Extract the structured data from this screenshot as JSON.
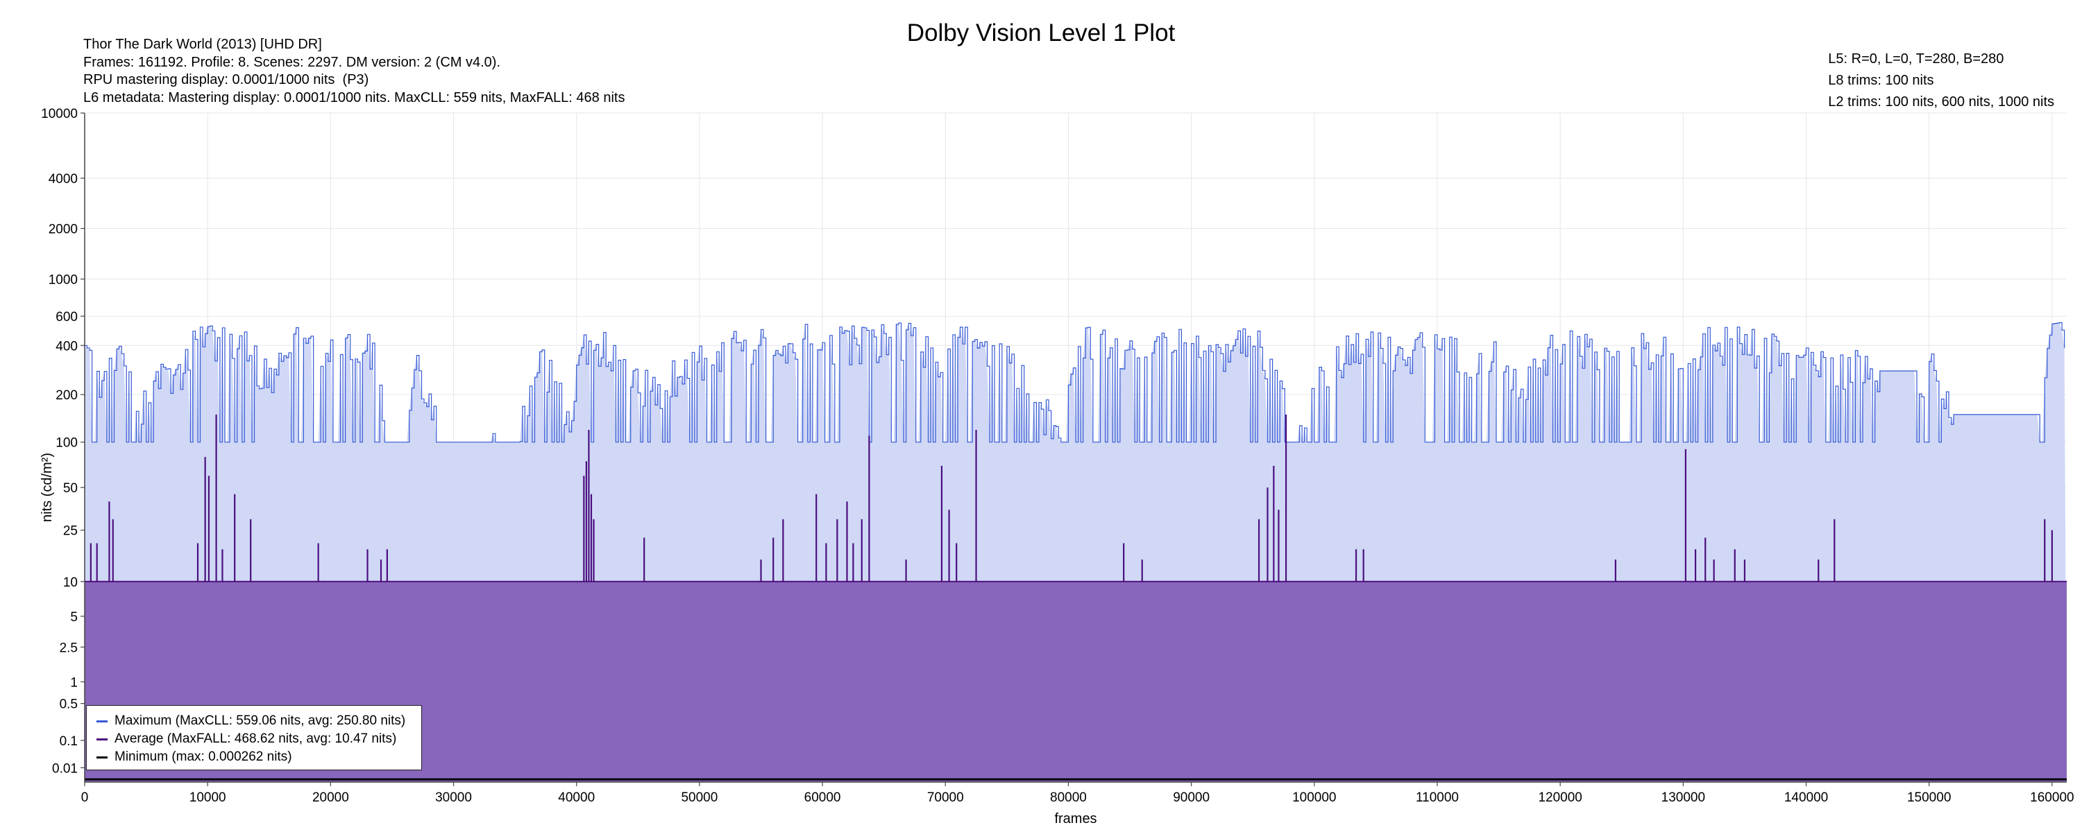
{
  "header": {
    "title": "Dolby Vision Level 1 Plot",
    "info_left": [
      "Thor The Dark World (2013) [UHD DR]",
      "Frames: 161192. Profile: 8. Scenes: 2297. DM version: 2 (CM v4.0).",
      "RPU mastering display: 0.0001/1000 nits  (P3)",
      "L6 metadata: Mastering display: 0.0001/1000 nits. MaxCLL: 559 nits, MaxFALL: 468 nits"
    ],
    "info_right": [
      "L5: R=0, L=0, T=280, B=280",
      "L8 trims: 100 nits",
      "L2 trims: 100 nits, 600 nits, 1000 nits"
    ]
  },
  "chart_data": {
    "type": "area",
    "title": "Dolby Vision Level 1 Plot",
    "xlabel": "frames",
    "ylabel": "nits (cd/m²)",
    "xlim": [
      0,
      161192
    ],
    "x_ticks": [
      0,
      10000,
      20000,
      30000,
      40000,
      50000,
      60000,
      70000,
      80000,
      90000,
      100000,
      110000,
      120000,
      130000,
      140000,
      150000,
      160000
    ],
    "x_tick_labels": [
      "0",
      "10000",
      "20000",
      "30000",
      "40000",
      "50000",
      "60000",
      "70000",
      "80000",
      "90000",
      "100000",
      "110000",
      "120000",
      "130000",
      "140000",
      "150000",
      "160000"
    ],
    "y_scale": "pq",
    "ylim": [
      0,
      10000
    ],
    "y_ticks": [
      0.01,
      0.1,
      0.5,
      1,
      2.5,
      5,
      10,
      25,
      50,
      100,
      200,
      400,
      600,
      1000,
      2000,
      4000,
      10000
    ],
    "y_tick_labels": [
      "0.01",
      "0.1",
      "0.5",
      "1",
      "2.5",
      "5",
      "10",
      "25",
      "50",
      "100",
      "200",
      "400",
      "600",
      "1000",
      "2000",
      "4000",
      "10000"
    ],
    "grid": true,
    "legend_position": "bottom-left",
    "series": [
      {
        "name": "Maximum (MaxCLL: 559.06 nits, avg: 250.80 nits)",
        "color": "#3559d4",
        "fill": "#d0d8f6",
        "floor": 100,
        "max": 559.06,
        "avg": 250.8,
        "points": [
          [
            0,
            400
          ],
          [
            1500,
            300
          ],
          [
            3000,
            420
          ],
          [
            4500,
            180
          ],
          [
            6000,
            350
          ],
          [
            7500,
            300
          ],
          [
            9000,
            550
          ],
          [
            11000,
            540
          ],
          [
            13000,
            520
          ],
          [
            15000,
            300
          ],
          [
            17000,
            550
          ],
          [
            20000,
            540
          ],
          [
            22000,
            545
          ],
          [
            23000,
            530
          ],
          [
            24500,
            100
          ],
          [
            26000,
            100
          ],
          [
            27000,
            400
          ],
          [
            28000,
            250
          ],
          [
            29000,
            100
          ],
          [
            32000,
            100
          ],
          [
            33000,
            150
          ],
          [
            35000,
            100
          ],
          [
            37000,
            400
          ],
          [
            38500,
            300
          ],
          [
            39500,
            100
          ],
          [
            40500,
            550
          ],
          [
            42000,
            540
          ],
          [
            44000,
            420
          ],
          [
            45500,
            300
          ],
          [
            47000,
            250
          ],
          [
            49000,
            450
          ],
          [
            51000,
            380
          ],
          [
            53000,
            500
          ],
          [
            55000,
            500
          ],
          [
            57000,
            540
          ],
          [
            60000,
            545
          ],
          [
            63000,
            550
          ],
          [
            66000,
            550
          ],
          [
            68000,
            545
          ],
          [
            69500,
            300
          ],
          [
            71000,
            540
          ],
          [
            73000,
            500
          ],
          [
            75000,
            450
          ],
          [
            76500,
            300
          ],
          [
            78000,
            200
          ],
          [
            79500,
            100
          ],
          [
            81000,
            540
          ],
          [
            84000,
            520
          ],
          [
            87000,
            540
          ],
          [
            90000,
            500
          ],
          [
            92500,
            480
          ],
          [
            95000,
            520
          ],
          [
            97500,
            350
          ],
          [
            99000,
            100
          ],
          [
            101000,
            400
          ],
          [
            103000,
            480
          ],
          [
            105000,
            500
          ],
          [
            107000,
            450
          ],
          [
            109000,
            540
          ],
          [
            111000,
            500
          ],
          [
            113000,
            380
          ],
          [
            115000,
            450
          ],
          [
            117000,
            300
          ],
          [
            120000,
            550
          ],
          [
            123000,
            500
          ],
          [
            125000,
            420
          ],
          [
            128000,
            520
          ],
          [
            131000,
            510
          ],
          [
            134000,
            540
          ],
          [
            137000,
            480
          ],
          [
            140000,
            400
          ],
          [
            142000,
            380
          ],
          [
            144000,
            400
          ],
          [
            146000,
            280
          ],
          [
            149000,
            280
          ],
          [
            150500,
            400
          ],
          [
            152000,
            150
          ],
          [
            155000,
            150
          ],
          [
            158000,
            150
          ],
          [
            159000,
            150
          ],
          [
            160000,
            540
          ],
          [
            160700,
            550
          ],
          [
            161192,
            280
          ]
        ]
      },
      {
        "name": "Average (MaxFALL: 468.62 nits, avg: 10.47 nits)",
        "color": "#4b0f7f",
        "fill": "#8866bb",
        "baseline": 10,
        "max": 468.62,
        "avg": 10.47,
        "spikes": [
          [
            500,
            20
          ],
          [
            1000,
            20
          ],
          [
            2000,
            40
          ],
          [
            2300,
            30
          ],
          [
            9200,
            20
          ],
          [
            9800,
            80
          ],
          [
            10100,
            60
          ],
          [
            10700,
            150
          ],
          [
            11200,
            18
          ],
          [
            12200,
            45
          ],
          [
            13500,
            30
          ],
          [
            19000,
            20
          ],
          [
            23000,
            18
          ],
          [
            24100,
            15
          ],
          [
            24600,
            18
          ],
          [
            40600,
            60
          ],
          [
            40800,
            75
          ],
          [
            41000,
            120
          ],
          [
            41200,
            45
          ],
          [
            41400,
            30
          ],
          [
            45500,
            22
          ],
          [
            55000,
            15
          ],
          [
            56000,
            22
          ],
          [
            56800,
            30
          ],
          [
            59500,
            45
          ],
          [
            60300,
            20
          ],
          [
            61200,
            30
          ],
          [
            62000,
            40
          ],
          [
            62500,
            20
          ],
          [
            63200,
            30
          ],
          [
            63800,
            110
          ],
          [
            66800,
            15
          ],
          [
            69700,
            70
          ],
          [
            70300,
            35
          ],
          [
            70900,
            20
          ],
          [
            72500,
            120
          ],
          [
            84500,
            20
          ],
          [
            86000,
            15
          ],
          [
            95500,
            30
          ],
          [
            96200,
            50
          ],
          [
            96700,
            70
          ],
          [
            97100,
            35
          ],
          [
            97700,
            150
          ],
          [
            103400,
            18
          ],
          [
            104000,
            18
          ],
          [
            124500,
            15
          ],
          [
            130200,
            90
          ],
          [
            131000,
            18
          ],
          [
            131800,
            22
          ],
          [
            132500,
            15
          ],
          [
            134200,
            18
          ],
          [
            135000,
            15
          ],
          [
            141000,
            15
          ],
          [
            142300,
            30
          ],
          [
            159400,
            30
          ],
          [
            160000,
            25
          ]
        ]
      },
      {
        "name": "Minimum (max: 0.000262 nits)",
        "color": "#000000",
        "max": 0.000262
      }
    ]
  }
}
